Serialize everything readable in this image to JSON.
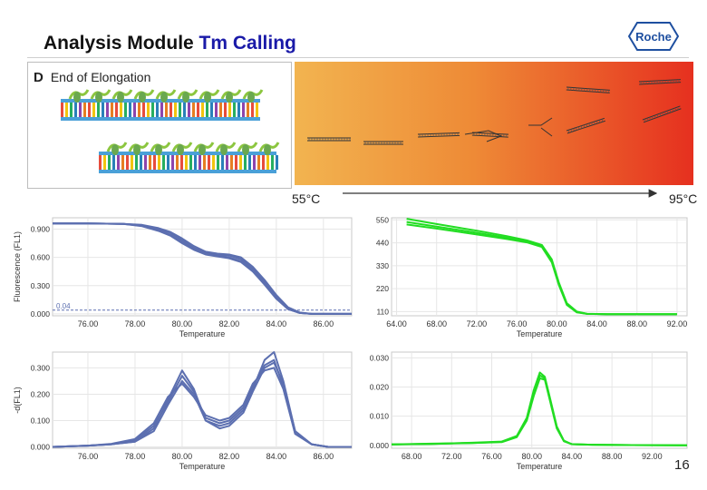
{
  "slide": {
    "title_prefix": "Analysis Module ",
    "title_accent": "Tm Calling",
    "logo_text": "Roche",
    "page_number": "16",
    "accent_color": "#1a1aa8"
  },
  "elongation_panel": {
    "panel_letter": "D",
    "label": "End of Elongation"
  },
  "melt_panel": {
    "low_temp_label": "55°C",
    "high_temp_label": "95°C",
    "gradient_colors": [
      "#f2b450",
      "#ee8a36",
      "#e6301f"
    ]
  },
  "chart_data": [
    {
      "id": "fluorescence-blue",
      "type": "line",
      "ylabel": "Fluorescence (FL1)",
      "xlabel": "Temperature",
      "xlim": [
        74.5,
        87.2
      ],
      "ylim": [
        -0.02,
        1.02
      ],
      "xticks": [
        "76.00",
        "78.00",
        "80.00",
        "82.00",
        "84.00",
        "86.00"
      ],
      "xtick_values": [
        76,
        78,
        80,
        82,
        84,
        86
      ],
      "yticks": [
        "0.000",
        "0.300",
        "0.600",
        "0.900"
      ],
      "ytick_values": [
        0,
        0.3,
        0.6,
        0.9
      ],
      "threshold_label": "0.04",
      "threshold_value": 0.04,
      "color": "#5c6fb0",
      "grid": true,
      "series": [
        {
          "x": [
            74.5,
            76,
            77.5,
            78.3,
            79,
            79.5,
            80,
            80.5,
            81,
            81.5,
            82,
            82.5,
            83,
            83.5,
            84,
            84.5,
            85,
            85.5,
            87.2
          ],
          "y": [
            0.96,
            0.96,
            0.955,
            0.94,
            0.9,
            0.86,
            0.78,
            0.7,
            0.65,
            0.63,
            0.62,
            0.58,
            0.48,
            0.34,
            0.18,
            0.06,
            0.01,
            0.0,
            0.0
          ]
        },
        {
          "x": [
            74.5,
            76,
            77.5,
            78.3,
            79,
            79.5,
            80,
            80.5,
            81,
            81.5,
            82,
            82.5,
            83,
            83.5,
            84,
            84.5,
            85,
            85.5,
            87.2
          ],
          "y": [
            0.96,
            0.96,
            0.955,
            0.935,
            0.89,
            0.84,
            0.76,
            0.69,
            0.64,
            0.62,
            0.6,
            0.56,
            0.46,
            0.32,
            0.17,
            0.05,
            0.01,
            0.0,
            0.0
          ]
        },
        {
          "x": [
            74.5,
            76,
            77.5,
            78.3,
            79,
            79.5,
            80,
            80.5,
            81,
            81.5,
            82,
            82.5,
            83,
            83.5,
            84,
            84.5,
            85,
            85.5,
            87.2
          ],
          "y": [
            0.96,
            0.96,
            0.955,
            0.945,
            0.91,
            0.87,
            0.8,
            0.72,
            0.66,
            0.64,
            0.63,
            0.6,
            0.5,
            0.36,
            0.2,
            0.07,
            0.015,
            0.0,
            0.0
          ]
        },
        {
          "x": [
            74.5,
            76,
            77.5,
            78.3,
            79,
            79.5,
            80,
            80.5,
            81,
            81.5,
            82,
            82.5,
            83,
            83.5,
            84,
            84.5,
            85,
            85.5,
            87.2
          ],
          "y": [
            0.96,
            0.96,
            0.955,
            0.93,
            0.88,
            0.83,
            0.75,
            0.68,
            0.63,
            0.61,
            0.59,
            0.55,
            0.45,
            0.31,
            0.16,
            0.05,
            0.01,
            0.0,
            0.0
          ]
        }
      ]
    },
    {
      "id": "fluorescence-green",
      "type": "line",
      "xlim": [
        63.5,
        93
      ],
      "ylim": [
        90,
        560
      ],
      "xticks": [
        "64.00",
        "68.00",
        "72.00",
        "76.00",
        "80.00",
        "84.00",
        "88.00",
        "92.00"
      ],
      "xtick_values": [
        64,
        68,
        72,
        76,
        80,
        84,
        88,
        92
      ],
      "xlabel": "Temperature",
      "yticks": [
        "110",
        "220",
        "330",
        "440",
        "550"
      ],
      "ytick_values": [
        110,
        220,
        330,
        440,
        550
      ],
      "color": "#22dd22",
      "grid": true,
      "series": [
        {
          "x": [
            65,
            68,
            72,
            75,
            77,
            78.5,
            79.5,
            80.2,
            81,
            82,
            83,
            85,
            88,
            92
          ],
          "y": [
            555,
            530,
            498,
            472,
            452,
            430,
            360,
            250,
            150,
            110,
            100,
            98,
            98,
            98
          ]
        },
        {
          "x": [
            65,
            68,
            72,
            75,
            77,
            78.5,
            79.5,
            80.2,
            81,
            82,
            83,
            85,
            88,
            92
          ],
          "y": [
            540,
            518,
            488,
            465,
            447,
            424,
            352,
            243,
            145,
            108,
            99,
            98,
            98,
            98
          ]
        },
        {
          "x": [
            65,
            68,
            72,
            75,
            77,
            78.5,
            79.5,
            80.2,
            81,
            82,
            83,
            85,
            88,
            92
          ],
          "y": [
            528,
            508,
            480,
            458,
            442,
            420,
            346,
            238,
            142,
            106,
            99,
            98,
            98,
            98
          ]
        }
      ]
    },
    {
      "id": "derivative-blue",
      "type": "line",
      "ylabel": "-d(FL1)",
      "xlabel": "Temperature",
      "xlim": [
        74.5,
        87.2
      ],
      "ylim": [
        -0.005,
        0.36
      ],
      "xticks": [
        "76.00",
        "78.00",
        "80.00",
        "82.00",
        "84.00",
        "86.00"
      ],
      "xtick_values": [
        76,
        78,
        80,
        82,
        84,
        86
      ],
      "yticks": [
        "0.000",
        "0.100",
        "0.200",
        "0.300"
      ],
      "ytick_values": [
        0,
        0.1,
        0.2,
        0.3
      ],
      "color": "#5c6fb0",
      "grid": true,
      "series": [
        {
          "x": [
            74.5,
            76,
            77,
            78,
            78.8,
            79.4,
            80,
            80.5,
            81,
            81.6,
            82,
            82.6,
            83,
            83.5,
            83.9,
            84.3,
            84.8,
            85.5,
            86.2,
            87.2
          ],
          "y": [
            0.0,
            0.005,
            0.01,
            0.02,
            0.07,
            0.18,
            0.29,
            0.22,
            0.1,
            0.08,
            0.09,
            0.14,
            0.22,
            0.33,
            0.36,
            0.25,
            0.06,
            0.01,
            0.0,
            0.0
          ]
        },
        {
          "x": [
            74.5,
            76,
            77,
            78,
            78.8,
            79.4,
            80,
            80.5,
            81,
            81.6,
            82,
            82.6,
            83,
            83.5,
            83.9,
            84.3,
            84.8,
            85.5,
            86.2,
            87.2
          ],
          "y": [
            0.0,
            0.005,
            0.01,
            0.025,
            0.08,
            0.17,
            0.27,
            0.21,
            0.11,
            0.09,
            0.1,
            0.15,
            0.23,
            0.31,
            0.33,
            0.23,
            0.05,
            0.01,
            0.0,
            0.0
          ]
        },
        {
          "x": [
            74.5,
            76,
            77,
            78,
            78.8,
            79.4,
            80,
            80.5,
            81,
            81.6,
            82,
            82.6,
            83,
            83.5,
            83.9,
            84.3,
            84.8,
            85.5,
            86.2,
            87.2
          ],
          "y": [
            0.0,
            0.005,
            0.01,
            0.02,
            0.06,
            0.16,
            0.25,
            0.2,
            0.1,
            0.07,
            0.08,
            0.13,
            0.21,
            0.3,
            0.32,
            0.24,
            0.06,
            0.01,
            0.0,
            0.0
          ]
        },
        {
          "x": [
            74.5,
            76,
            77,
            78,
            78.8,
            79.4,
            80,
            80.5,
            81,
            81.6,
            82,
            82.6,
            83,
            83.5,
            83.9,
            84.3,
            84.8,
            85.5,
            86.2,
            87.2
          ],
          "y": [
            0.0,
            0.005,
            0.012,
            0.03,
            0.09,
            0.19,
            0.24,
            0.19,
            0.12,
            0.1,
            0.11,
            0.16,
            0.24,
            0.29,
            0.3,
            0.22,
            0.05,
            0.01,
            0.0,
            0.0
          ]
        }
      ]
    },
    {
      "id": "derivative-green",
      "type": "line",
      "xlabel": "Temperature",
      "xlim": [
        66,
        95.5
      ],
      "ylim": [
        -0.001,
        0.032
      ],
      "xticks": [
        "68.00",
        "72.00",
        "76.00",
        "80.00",
        "84.00",
        "88.00",
        "92.00"
      ],
      "xtick_values": [
        68,
        72,
        76,
        80,
        84,
        88,
        92
      ],
      "yticks": [
        "0.000",
        "0.010",
        "0.020",
        "0.030"
      ],
      "ytick_values": [
        0,
        0.01,
        0.02,
        0.03
      ],
      "color": "#22dd22",
      "grid": true,
      "series": [
        {
          "x": [
            66,
            70,
            74,
            77,
            78.5,
            79.5,
            80.2,
            80.8,
            81.3,
            81.8,
            82.5,
            83.2,
            84,
            86,
            90,
            95.5
          ],
          "y": [
            0.0003,
            0.0005,
            0.0008,
            0.0012,
            0.003,
            0.009,
            0.018,
            0.024,
            0.023,
            0.016,
            0.006,
            0.0015,
            0.0004,
            0.0002,
            0.0001,
            0.0
          ]
        },
        {
          "x": [
            66,
            70,
            74,
            77,
            78.5,
            79.5,
            80.2,
            80.8,
            81.3,
            81.8,
            82.5,
            83.2,
            84,
            86,
            90,
            95.5
          ],
          "y": [
            0.0003,
            0.0005,
            0.0009,
            0.0013,
            0.0032,
            0.0095,
            0.019,
            0.025,
            0.0235,
            0.0165,
            0.0065,
            0.0016,
            0.0004,
            0.0002,
            0.0001,
            0.0
          ]
        },
        {
          "x": [
            66,
            70,
            74,
            77,
            78.5,
            79.5,
            80.2,
            80.8,
            81.3,
            81.8,
            82.5,
            83.2,
            84,
            86,
            90,
            95.5
          ],
          "y": [
            0.0003,
            0.0006,
            0.0008,
            0.0011,
            0.0028,
            0.0085,
            0.017,
            0.023,
            0.0225,
            0.0155,
            0.0058,
            0.0014,
            0.0004,
            0.0002,
            0.0001,
            0.0
          ]
        }
      ]
    }
  ]
}
